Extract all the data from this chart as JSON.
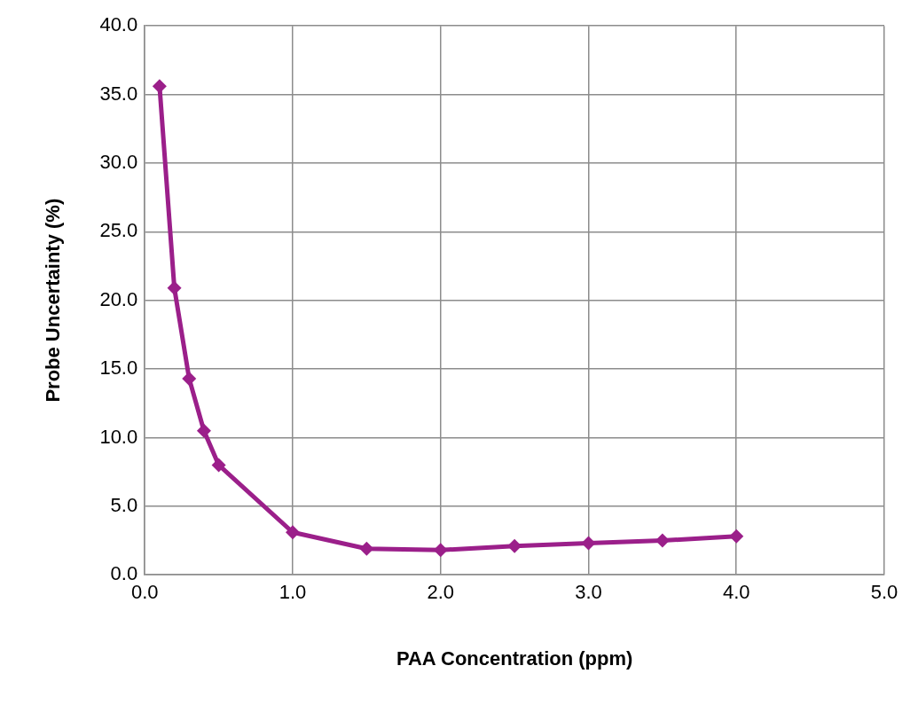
{
  "chart_data": {
    "type": "line",
    "xlabel": "PAA Concentration (ppm)",
    "ylabel": "Probe Uncertainty (%)",
    "x": [
      0.1,
      0.2,
      0.3,
      0.4,
      0.5,
      1.0,
      1.5,
      2.0,
      2.5,
      3.0,
      3.5,
      4.0
    ],
    "series": [
      {
        "color": "#9b1f8a",
        "values": [
          35.6,
          20.9,
          14.3,
          10.5,
          8.0,
          3.1,
          1.9,
          1.8,
          2.1,
          2.3,
          2.5,
          2.8
        ]
      }
    ],
    "xlim": [
      0,
      5
    ],
    "xticks": [
      {
        "value": 0,
        "label": "0.0"
      },
      {
        "value": 1,
        "label": "1.0"
      },
      {
        "value": 2,
        "label": "2.0"
      },
      {
        "value": 3,
        "label": "3.0"
      },
      {
        "value": 4,
        "label": "4.0"
      },
      {
        "value": 5,
        "label": "5.0"
      }
    ],
    "ylim": [
      0,
      40
    ],
    "yticks": [
      {
        "value": 0,
        "label": "0.0"
      },
      {
        "value": 5,
        "label": "5.0"
      },
      {
        "value": 10,
        "label": "10.0"
      },
      {
        "value": 15,
        "label": "15.0"
      },
      {
        "value": 20,
        "label": "20.0"
      },
      {
        "value": 25,
        "label": "25.0"
      },
      {
        "value": 30,
        "label": "30.0"
      },
      {
        "value": 35,
        "label": "35.0"
      },
      {
        "value": 40,
        "label": "40.0"
      }
    ],
    "grid": true,
    "legend": false,
    "marker": "diamond",
    "line_style": "solid"
  }
}
